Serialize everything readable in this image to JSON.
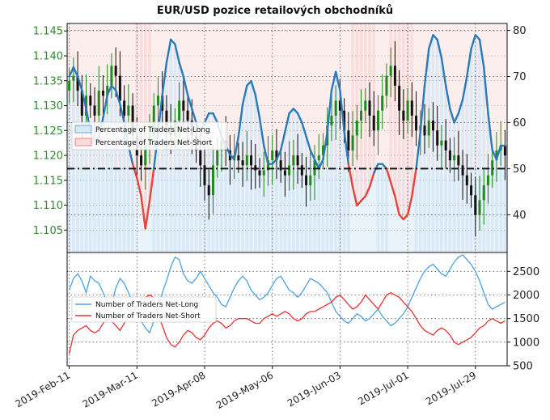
{
  "title": "EUR/USD pozice retailových obchodníků",
  "colors": {
    "price_up": "#1f8a1f",
    "price_down": "#111111",
    "net_long_line": "#2a7ab8",
    "net_short_line": "#e8423a",
    "net_long_fill": "#d8e8f6",
    "net_short_fill": "#fadada",
    "count_long": "#4aa3e0",
    "count_short": "#e83232"
  },
  "chart_data": [
    {
      "type": "line",
      "name": "top-panel",
      "left_axis": {
        "ticks": [
          "1.105",
          "1.110",
          "1.115",
          "1.120",
          "1.125",
          "1.130",
          "1.135",
          "1.140",
          "1.145"
        ],
        "range": [
          1.1005,
          1.1465
        ]
      },
      "right_axis": {
        "ticks": [
          "40",
          "50",
          "60",
          "70",
          "80"
        ],
        "range": [
          31.8,
          81.5
        ]
      },
      "x_tick_labels": [
        "2019-Feb-11",
        "2019-Mar-11",
        "2019-Apr-08",
        "2019-May-06",
        "2019-Jun-03",
        "2019-Jul-01",
        "2019-Jul-29"
      ],
      "reference_line": 50,
      "legend": {
        "placement": "center-left",
        "entries": [
          "Percentage of Traders Net-Long",
          "Percentage of Traders Net-Short"
        ]
      },
      "percent_long_series": [
        70,
        72,
        70,
        67,
        63,
        58,
        56,
        57,
        61,
        66,
        68,
        67,
        64,
        60,
        55,
        51,
        48,
        44,
        37,
        43,
        50,
        58,
        66,
        73,
        78,
        77,
        73,
        70,
        66,
        63,
        60,
        58,
        60,
        62,
        62,
        60,
        57,
        55,
        53,
        52,
        57,
        64,
        68,
        69,
        66,
        61,
        55,
        51,
        51,
        52,
        54,
        58,
        62,
        63,
        62,
        60,
        57,
        54,
        52,
        50,
        52,
        58,
        67,
        71,
        67,
        58,
        51,
        46,
        42,
        43,
        44,
        46,
        49,
        51,
        51,
        50,
        47,
        44,
        40,
        39,
        40,
        44,
        50,
        58,
        68,
        76,
        79,
        78,
        74,
        68,
        63,
        60,
        62,
        65,
        70,
        76,
        79,
        78,
        72,
        62,
        54,
        52,
        55,
        55
      ],
      "price_close": [
        1.135,
        1.136,
        1.133,
        1.128,
        1.132,
        1.13,
        1.128,
        1.133,
        1.132,
        1.134,
        1.138,
        1.136,
        1.131,
        1.128,
        1.13,
        1.124,
        1.12,
        1.118,
        1.122,
        1.124,
        1.13,
        1.132,
        1.129,
        1.126,
        1.124,
        1.127,
        1.131,
        1.129,
        1.127,
        1.124,
        1.121,
        1.118,
        1.114,
        1.112,
        1.118,
        1.121,
        1.123,
        1.121,
        1.119,
        1.12,
        1.119,
        1.118,
        1.12,
        1.118,
        1.117,
        1.116,
        1.117,
        1.119,
        1.121,
        1.119,
        1.117,
        1.116,
        1.118,
        1.12,
        1.118,
        1.116,
        1.114,
        1.116,
        1.119,
        1.12,
        1.122,
        1.126,
        1.128,
        1.131,
        1.129,
        1.125,
        1.121,
        1.124,
        1.127,
        1.129,
        1.131,
        1.128,
        1.125,
        1.129,
        1.132,
        1.136,
        1.138,
        1.134,
        1.129,
        1.127,
        1.131,
        1.128,
        1.125,
        1.126,
        1.124,
        1.127,
        1.125,
        1.122,
        1.123,
        1.121,
        1.119,
        1.12,
        1.118,
        1.116,
        1.114,
        1.112,
        1.108,
        1.111,
        1.114,
        1.116,
        1.119,
        1.121,
        1.122,
        1.12
      ]
    },
    {
      "type": "line",
      "name": "bottom-panel",
      "right_axis": {
        "ticks": [
          "500",
          "1000",
          "1500",
          "2000",
          "2500"
        ],
        "range": [
          500,
          2900
        ]
      },
      "legend": {
        "placement": "center-left",
        "entries": [
          "Number of Traders Net-Long",
          "Number of Traders Net-Short"
        ]
      },
      "series": [
        {
          "name": "Number of Traders Net-Long",
          "values": [
            2100,
            2350,
            2450,
            2300,
            2050,
            2400,
            2300,
            2250,
            2050,
            1850,
            1800,
            2150,
            2350,
            2250,
            2050,
            1850,
            1650,
            1450,
            1300,
            1200,
            1450,
            1700,
            2050,
            2300,
            2600,
            2800,
            2750,
            2450,
            2300,
            2250,
            2350,
            2500,
            2350,
            2200,
            2050,
            1950,
            1800,
            1750,
            1950,
            2150,
            2300,
            2400,
            2300,
            2100,
            2000,
            1900,
            1950,
            2050,
            2200,
            2350,
            2400,
            2250,
            2100,
            2050,
            1950,
            2050,
            2200,
            2350,
            2300,
            2250,
            2150,
            2050,
            1850,
            1650,
            1550,
            1450,
            1400,
            1500,
            1600,
            1550,
            1450,
            1500,
            1600,
            1700,
            1550,
            1450,
            1350,
            1400,
            1500,
            1600,
            1750,
            1950,
            2150,
            2350,
            2500,
            2600,
            2650,
            2550,
            2450,
            2400,
            2550,
            2700,
            2800,
            2850,
            2750,
            2650,
            2500,
            2300,
            2050,
            1800,
            1700,
            1750,
            1800,
            1850
          ]
        },
        {
          "name": "Number of Traders Net-Short",
          "values": [
            750,
            1150,
            1250,
            1300,
            1350,
            1250,
            1200,
            1250,
            1400,
            1500,
            1450,
            1350,
            1250,
            1400,
            1550,
            1650,
            1750,
            1900,
            1950,
            2000,
            1950,
            1600,
            1350,
            1100,
            950,
            900,
            1000,
            1150,
            1250,
            1200,
            1100,
            1050,
            1150,
            1300,
            1400,
            1450,
            1400,
            1300,
            1350,
            1450,
            1500,
            1500,
            1500,
            1450,
            1400,
            1400,
            1500,
            1550,
            1600,
            1550,
            1600,
            1650,
            1600,
            1500,
            1450,
            1500,
            1600,
            1650,
            1650,
            1700,
            1750,
            1800,
            1850,
            1950,
            2000,
            1900,
            1800,
            1700,
            1750,
            1850,
            2000,
            1900,
            1800,
            1700,
            1850,
            2000,
            2050,
            2000,
            1950,
            1850,
            1750,
            1650,
            1500,
            1350,
            1250,
            1200,
            1150,
            1250,
            1300,
            1250,
            1150,
            1000,
            950,
            1000,
            1050,
            1100,
            1200,
            1300,
            1350,
            1450,
            1500,
            1450,
            1400,
            1450
          ]
        }
      ]
    }
  ]
}
